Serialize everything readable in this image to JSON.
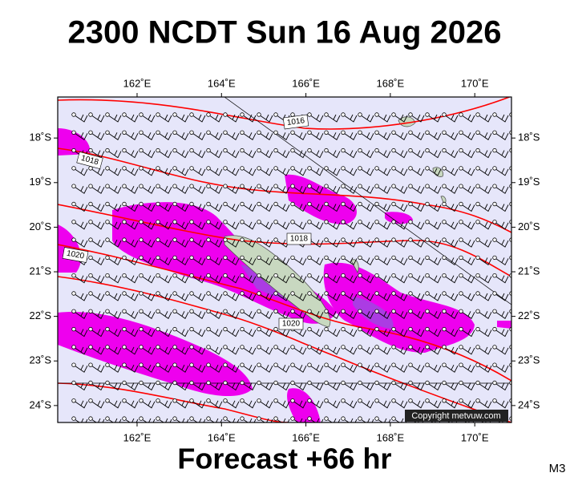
{
  "header": {
    "title": "2300 NCDT Sun 16 Aug 2026"
  },
  "footer": {
    "forecast": "Forecast +66 hr",
    "model": "M3"
  },
  "map": {
    "lon_range": [
      160.12,
      170.87
    ],
    "lat_range": [
      -17.08,
      -24.38
    ],
    "lon_ticks": [
      {
        "value": 162,
        "label": "162˚E"
      },
      {
        "value": 164,
        "label": "164˚E"
      },
      {
        "value": 166,
        "label": "166˚E"
      },
      {
        "value": 168,
        "label": "168˚E"
      },
      {
        "value": 170,
        "label": "170˚E"
      }
    ],
    "lat_ticks": [
      {
        "value": -18,
        "label": "18˚S"
      },
      {
        "value": -19,
        "label": "19˚S"
      },
      {
        "value": -20,
        "label": "20˚S"
      },
      {
        "value": -21,
        "label": "21˚S"
      },
      {
        "value": -22,
        "label": "22˚S"
      },
      {
        "value": -23,
        "label": "23˚S"
      },
      {
        "value": -24,
        "label": "24˚S"
      }
    ],
    "isobar_labels": [
      "1016",
      "1018",
      "1018",
      "1020",
      "1020"
    ],
    "copyright": "Copyright metvuw.com"
  }
}
